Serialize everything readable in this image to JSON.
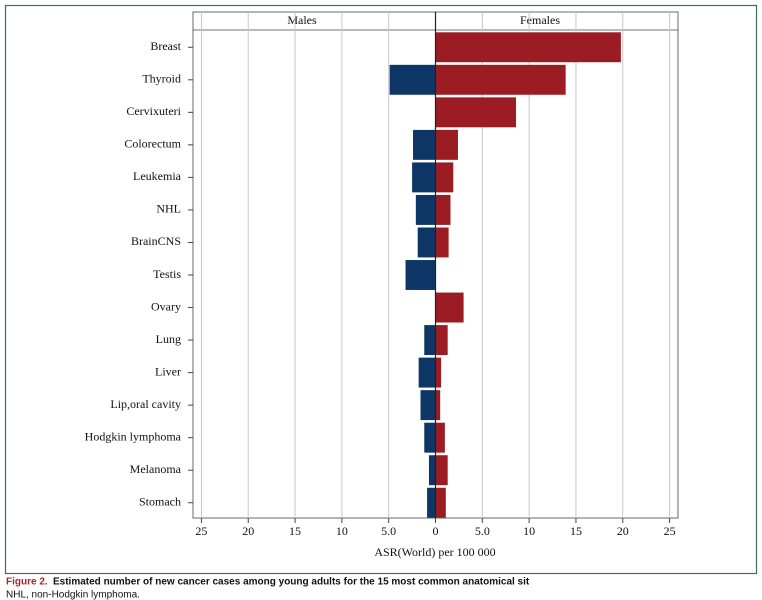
{
  "chart_data": {
    "type": "butterfly",
    "categories": [
      "Breast",
      "Thyroid",
      "Cervixuteri",
      "Colorectum",
      "Leukemia",
      "NHL",
      "BrainCNS",
      "Testis",
      "Ovary",
      "Lung",
      "Liver",
      "Lip,oral cavity",
      "Hodgkin lymphoma",
      "Melanoma",
      "Stomach"
    ],
    "series": [
      {
        "name": "Males",
        "color": "#0d3566",
        "values": [
          0,
          -4.9,
          0,
          -2.4,
          -2.5,
          -2.1,
          -1.9,
          -3.2,
          0,
          -1.2,
          -1.8,
          -1.6,
          -1.2,
          -0.7,
          -0.9
        ]
      },
      {
        "name": "Females",
        "color": "#9b1c22",
        "values": [
          19.8,
          13.9,
          8.6,
          2.4,
          1.9,
          1.6,
          1.4,
          0,
          3.0,
          1.3,
          0.6,
          0.5,
          1.0,
          1.3,
          1.1
        ]
      }
    ],
    "x_label": "ASR(World) per 100 000",
    "xlim": [
      -25.9,
      25.9
    ],
    "xticks": [
      {
        "value": -25,
        "label": "25"
      },
      {
        "value": -20,
        "label": "20"
      },
      {
        "value": -15,
        "label": "15"
      },
      {
        "value": -10,
        "label": "10"
      },
      {
        "value": -5,
        "label": "5.0"
      },
      0,
      {
        "value": 5,
        "label": "5.0"
      },
      10,
      15,
      20,
      25
    ],
    "grid": true,
    "caption_label": "Figure 2.",
    "caption": "Estimated number of new cancer cases among young adults for the 15 most common anatomical sit",
    "footnote": "NHL, non-Hodgkin lymphoma."
  }
}
